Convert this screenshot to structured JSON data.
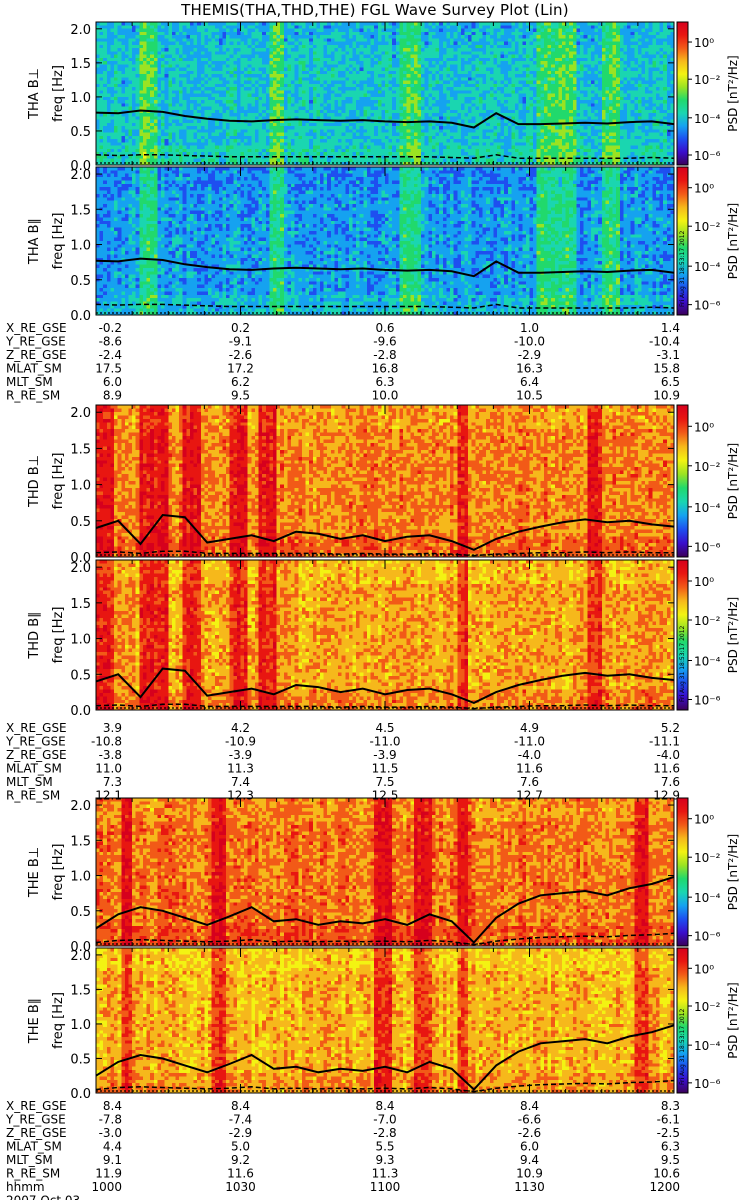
{
  "title": "THEMIS(THA,THD,THE) FGL Wave Survey Plot (Lin)",
  "colors": {
    "background": "#ffffff",
    "trace": "#000000",
    "colormap": [
      "#3b0058",
      "#3a0ecc",
      "#1e4ff0",
      "#15a2f0",
      "#1ad6b0",
      "#21d96c",
      "#9be322",
      "#f3f312",
      "#f6b81b",
      "#f25a17",
      "#e81611",
      "#d6001d"
    ]
  },
  "colorbar": {
    "label": "PSD [nT²/Hz]",
    "ticks": [
      "10⁰",
      "10⁻²",
      "10⁻⁴",
      "10⁻⁶"
    ]
  },
  "yaxis": {
    "label": "freq [Hz]",
    "ticks": [
      "0.0",
      "0.5",
      "1.0",
      "1.5",
      "2.0"
    ]
  },
  "timestamp": "Fri Aug 31 18:53:17 2012",
  "footer": {
    "hhmm_label": "hhmm",
    "date": "2007 Oct 03",
    "times": [
      "1000",
      "1030",
      "1100",
      "1130",
      "1200"
    ]
  },
  "chart_data": [
    {
      "type": "heatmap",
      "probe": "THA",
      "panels": [
        {
          "label": "THA B⊥",
          "level": 3.6
        },
        {
          "label": "THA B∥",
          "level": 3.0
        }
      ],
      "x": [
        "1000",
        "1030",
        "1100",
        "1130",
        "1200"
      ],
      "ylim": [
        0,
        2.1
      ],
      "fce_line": [
        0.77,
        0.76,
        0.8,
        0.78,
        0.72,
        0.68,
        0.65,
        0.64,
        0.66,
        0.67,
        0.66,
        0.65,
        0.66,
        0.64,
        0.63,
        0.64,
        0.62,
        0.55,
        0.76,
        0.6,
        0.6,
        0.61,
        0.62,
        0.61,
        0.63,
        0.64,
        0.6
      ],
      "dashed_line": [
        0.15,
        0.14,
        0.15,
        0.15,
        0.14,
        0.13,
        0.12,
        0.12,
        0.12,
        0.12,
        0.12,
        0.12,
        0.12,
        0.12,
        0.12,
        0.12,
        0.11,
        0.1,
        0.15,
        0.1,
        0.1,
        0.1,
        0.1,
        0.1,
        0.1,
        0.11,
        0.1
      ],
      "bands": [
        [
          0.07,
          0.1
        ],
        [
          0.3,
          0.32
        ],
        [
          0.52,
          0.56
        ],
        [
          0.76,
          0.83
        ],
        [
          0.87,
          0.9
        ]
      ],
      "ephemeris": [
        {
          "name": "X_RE_GSE",
          "values": [
            "-0.2",
            "0.2",
            "0.6",
            "1.0",
            "1.4"
          ]
        },
        {
          "name": "Y_RE_GSE",
          "values": [
            "-8.6",
            "-9.1",
            "-9.6",
            "-10.0",
            "-10.4"
          ]
        },
        {
          "name": "Z_RE_GSE",
          "values": [
            "-2.4",
            "-2.6",
            "-2.8",
            "-2.9",
            "-3.1"
          ]
        },
        {
          "name": "MLAT_SM",
          "values": [
            "17.5",
            "17.2",
            "16.8",
            "16.3",
            "15.8"
          ]
        },
        {
          "name": "MLT_SM",
          "values": [
            "6.0",
            "6.2",
            "6.3",
            "6.4",
            "6.5"
          ]
        },
        {
          "name": "R_RE_SM",
          "values": [
            "8.9",
            "9.5",
            "10.0",
            "10.5",
            "10.9"
          ]
        }
      ]
    },
    {
      "type": "heatmap",
      "probe": "THD",
      "panels": [
        {
          "label": "THD B⊥",
          "level": 8.6
        },
        {
          "label": "THD B∥",
          "level": 8.2
        }
      ],
      "x": [
        "1000",
        "1030",
        "1100",
        "1130",
        "1200"
      ],
      "ylim": [
        0,
        2.1
      ],
      "fce_line": [
        0.4,
        0.5,
        0.18,
        0.58,
        0.55,
        0.2,
        0.25,
        0.3,
        0.22,
        0.35,
        0.32,
        0.25,
        0.3,
        0.22,
        0.28,
        0.3,
        0.22,
        0.1,
        0.25,
        0.35,
        0.42,
        0.48,
        0.52,
        0.48,
        0.5,
        0.45,
        0.42
      ],
      "dashed_line": [
        0.06,
        0.07,
        0.05,
        0.08,
        0.08,
        0.05,
        0.05,
        0.05,
        0.05,
        0.05,
        0.05,
        0.04,
        0.05,
        0.04,
        0.04,
        0.05,
        0.04,
        0.02,
        0.04,
        0.05,
        0.06,
        0.06,
        0.07,
        0.06,
        0.07,
        0.06,
        0.06
      ],
      "bands": [
        [
          0.0,
          0.03
        ],
        [
          0.07,
          0.12
        ],
        [
          0.15,
          0.18
        ],
        [
          0.23,
          0.26
        ],
        [
          0.28,
          0.31
        ],
        [
          0.62,
          0.64
        ],
        [
          0.85,
          0.87
        ]
      ],
      "ephemeris": [
        {
          "name": "X_RE_GSE",
          "values": [
            "3.9",
            "4.2",
            "4.5",
            "4.9",
            "5.2"
          ]
        },
        {
          "name": "Y_RE_GSE",
          "values": [
            "-10.8",
            "-10.9",
            "-11.0",
            "-11.0",
            "-11.1"
          ]
        },
        {
          "name": "Z_RE_GSE",
          "values": [
            "-3.8",
            "-3.9",
            "-3.9",
            "-4.0",
            "-4.0"
          ]
        },
        {
          "name": "MLAT_SM",
          "values": [
            "11.0",
            "11.3",
            "11.5",
            "11.6",
            "11.6"
          ]
        },
        {
          "name": "MLT_SM",
          "values": [
            "7.3",
            "7.4",
            "7.5",
            "7.6",
            "7.6"
          ]
        },
        {
          "name": "R_RE_SM",
          "values": [
            "12.1",
            "12.3",
            "12.5",
            "12.7",
            "12.9"
          ]
        }
      ]
    },
    {
      "type": "heatmap",
      "probe": "THE",
      "panels": [
        {
          "label": "THE B⊥",
          "level": 8.8
        },
        {
          "label": "THE B∥",
          "level": 8.0
        }
      ],
      "x": [
        "1000",
        "1030",
        "1100",
        "1130",
        "1200"
      ],
      "ylim": [
        0,
        2.1
      ],
      "fce_line": [
        0.25,
        0.45,
        0.55,
        0.5,
        0.4,
        0.3,
        0.42,
        0.55,
        0.35,
        0.38,
        0.3,
        0.35,
        0.32,
        0.38,
        0.3,
        0.45,
        0.35,
        0.05,
        0.4,
        0.6,
        0.72,
        0.75,
        0.78,
        0.72,
        0.82,
        0.88,
        0.98
      ],
      "dashed_line": [
        0.05,
        0.08,
        0.09,
        0.08,
        0.07,
        0.06,
        0.07,
        0.09,
        0.06,
        0.07,
        0.06,
        0.07,
        0.06,
        0.07,
        0.06,
        0.08,
        0.06,
        0.02,
        0.07,
        0.1,
        0.12,
        0.13,
        0.14,
        0.13,
        0.15,
        0.16,
        0.18
      ],
      "bands": [
        [
          0.04,
          0.06
        ],
        [
          0.2,
          0.22
        ],
        [
          0.48,
          0.51
        ],
        [
          0.55,
          0.58
        ],
        [
          0.62,
          0.64
        ],
        [
          0.93,
          0.95
        ]
      ],
      "ephemeris": [
        {
          "name": "X_RE_GSE",
          "values": [
            "8.4",
            "8.4",
            "8.4",
            "8.4",
            "8.3"
          ]
        },
        {
          "name": "Y_RE_GSE",
          "values": [
            "-7.8",
            "-7.4",
            "-7.0",
            "-6.6",
            "-6.1"
          ]
        },
        {
          "name": "Z_RE_GSE",
          "values": [
            "-3.0",
            "-2.9",
            "-2.8",
            "-2.6",
            "-2.5"
          ]
        },
        {
          "name": "MLAT_SM",
          "values": [
            "4.4",
            "5.0",
            "5.5",
            "6.0",
            "6.3"
          ]
        },
        {
          "name": "MLT_SM",
          "values": [
            "9.1",
            "9.2",
            "9.3",
            "9.4",
            "9.5"
          ]
        },
        {
          "name": "R_RE_SM",
          "values": [
            "11.9",
            "11.6",
            "11.3",
            "10.9",
            "10.6"
          ]
        }
      ]
    }
  ]
}
